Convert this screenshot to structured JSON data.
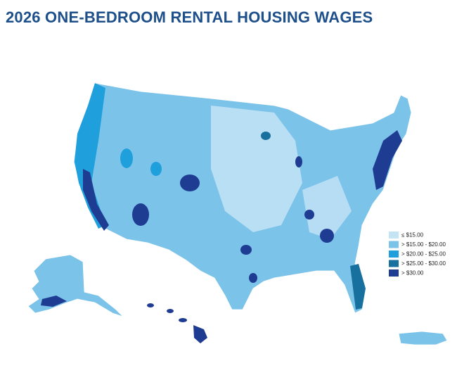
{
  "title": "2026 ONE-BEDROOM RENTAL HOUSING WAGES",
  "legend": {
    "items": [
      {
        "label": "≤ $15.00",
        "color": "#c4e4f6"
      },
      {
        "label": "> $15.00 - $20.00",
        "color": "#7cc3ea"
      },
      {
        "label": "> $20.00 - $25.00",
        "color": "#1f9fdc"
      },
      {
        "label": "> $25.00 - $30.00",
        "color": "#18709f"
      },
      {
        "label": "> $30.00",
        "color": "#1f3c93"
      }
    ]
  }
}
